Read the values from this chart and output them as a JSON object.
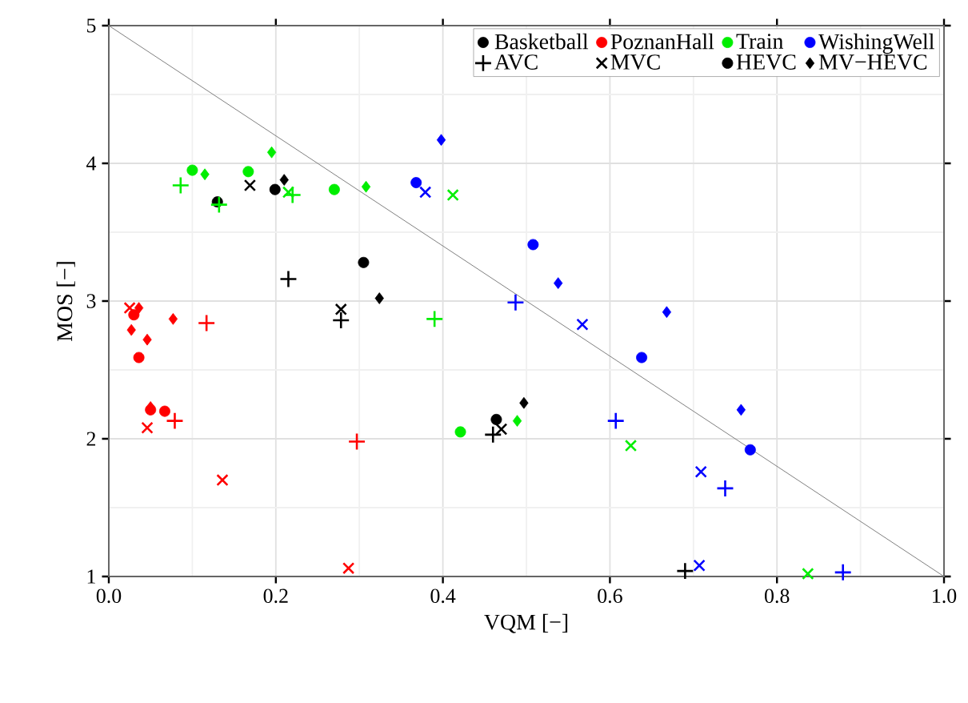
{
  "chart_data": {
    "type": "scatter",
    "xlabel": "VQM [−]",
    "ylabel": "MOS [−]",
    "xlim": [
      0,
      1
    ],
    "ylim": [
      1,
      5
    ],
    "xticks": [
      {
        "value": 0,
        "label": "0.0"
      },
      {
        "value": 0.2,
        "label": "0.2"
      },
      {
        "value": 0.4,
        "label": "0.4"
      },
      {
        "value": 0.6,
        "label": "0.6"
      },
      {
        "value": 0.8,
        "label": "0.8"
      },
      {
        "value": 1,
        "label": "1.0"
      }
    ],
    "yticks": [
      1,
      2,
      3,
      4,
      5
    ],
    "grid": true,
    "legend": "top right",
    "series": [
      {
        "name": "Basketball",
        "color": "#000000",
        "marker": "circle",
        "x": [
          0.13,
          0.199
        ],
        "values": [
          3.72,
          3.81
        ]
      },
      {
        "name": "PoznanHall",
        "color": "#ff0000",
        "marker": "circle",
        "x": [
          0.036,
          0.05,
          0.067,
          0.03
        ],
        "values": [
          2.59,
          2.21,
          2.2,
          2.9
        ]
      },
      {
        "name": "Train",
        "color": "#00ee00",
        "marker": "circle",
        "x": [
          0.1,
          0.167,
          0.27,
          0.421
        ],
        "values": [
          3.95,
          3.94,
          3.81,
          2.05
        ]
      },
      {
        "name": "WishingWell",
        "color": "#0000ff",
        "marker": "circle",
        "x": [
          0.368,
          0.508,
          0.638,
          0.768
        ],
        "values": [
          3.86,
          3.41,
          2.59,
          1.92
        ]
      },
      {
        "name": "AVC",
        "color": "#000000",
        "marker": "plus",
        "x": [
          0.215,
          0.278,
          0.46,
          0.69
        ],
        "values": [
          3.16,
          2.86,
          2.03,
          1.04
        ]
      },
      {
        "name": "MVC",
        "color": "#000000",
        "marker": "cross",
        "x": [
          0.169,
          0.278,
          0.47
        ],
        "values": [
          3.84,
          2.94,
          2.07
        ]
      },
      {
        "name": "HEVC",
        "color": "#000000",
        "marker": "circle",
        "x": [
          0.305,
          0.464
        ],
        "values": [
          3.28,
          2.14
        ]
      },
      {
        "name": "MV−HEVC",
        "color": "#000000",
        "marker": "diamond",
        "x": [
          0.21,
          0.324,
          0.497
        ],
        "values": [
          3.88,
          3.02,
          2.26
        ]
      },
      {
        "color": "#ff0000",
        "marker": "plus",
        "x": [
          0.117,
          0.079,
          0.297
        ],
        "values": [
          2.84,
          2.13,
          1.98
        ]
      },
      {
        "color": "#ff0000",
        "marker": "cross",
        "x": [
          0.025,
          0.046,
          0.136,
          0.287
        ],
        "values": [
          2.95,
          2.08,
          1.7,
          1.06
        ]
      },
      {
        "color": "#ff0000",
        "marker": "diamond",
        "x": [
          0.036,
          0.027,
          0.046,
          0.077,
          0.05
        ],
        "values": [
          2.95,
          2.79,
          2.72,
          2.87,
          2.23
        ]
      },
      {
        "color": "#00ee00",
        "marker": "plus",
        "x": [
          0.086,
          0.132,
          0.22,
          0.39
        ],
        "values": [
          3.84,
          3.7,
          3.77,
          2.87
        ]
      },
      {
        "color": "#00ee00",
        "marker": "cross",
        "x": [
          0.215,
          0.412,
          0.625,
          0.837
        ],
        "values": [
          3.79,
          3.77,
          1.95,
          1.02
        ]
      },
      {
        "color": "#00ee00",
        "marker": "diamond",
        "x": [
          0.115,
          0.195,
          0.308,
          0.489
        ],
        "values": [
          3.92,
          4.08,
          3.83,
          2.13
        ]
      },
      {
        "color": "#0000ff",
        "marker": "plus",
        "x": [
          0.487,
          0.607,
          0.738,
          0.879
        ],
        "values": [
          2.99,
          2.13,
          1.64,
          1.03
        ]
      },
      {
        "color": "#0000ff",
        "marker": "cross",
        "x": [
          0.379,
          0.567,
          0.709,
          0.707
        ],
        "values": [
          3.79,
          2.83,
          1.76,
          1.08
        ]
      },
      {
        "color": "#0000ff",
        "marker": "diamond",
        "x": [
          0.398,
          0.538,
          0.668,
          0.757
        ],
        "values": [
          4.17,
          3.13,
          2.92,
          2.21
        ]
      },
      {
        "type": "line",
        "color": "#808080",
        "marker": "none",
        "x": [
          0,
          1
        ],
        "values": [
          5,
          1
        ]
      }
    ]
  }
}
